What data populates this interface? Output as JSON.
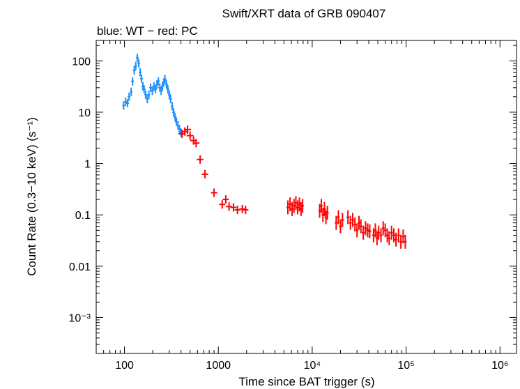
{
  "chart_data": {
    "type": "scatter",
    "title": "Swift/XRT data of GRB 090407",
    "subtitle": "blue: WT − red: PC",
    "xlabel": "Time since BAT trigger (s)",
    "ylabel": "Count Rate (0.3−10 keV) (s⁻¹)",
    "xscale": "log",
    "yscale": "log",
    "xlim": [
      50,
      1500000
    ],
    "ylim": [
      0.0002,
      250
    ],
    "x_ticks": [
      {
        "value": 100,
        "label": "100"
      },
      {
        "value": 1000,
        "label": "1000"
      },
      {
        "value": 10000,
        "label": "10⁴"
      },
      {
        "value": 100000,
        "label": "10⁵"
      },
      {
        "value": 1000000,
        "label": "10⁶"
      }
    ],
    "y_ticks": [
      {
        "value": 100,
        "label": "100"
      },
      {
        "value": 10,
        "label": "10"
      },
      {
        "value": 1,
        "label": "1"
      },
      {
        "value": 0.1,
        "label": "0.1"
      },
      {
        "value": 0.01,
        "label": "0.01"
      },
      {
        "value": 0.001,
        "label": "10⁻³"
      }
    ],
    "grid": false,
    "series": [
      {
        "name": "WT",
        "color": "#1e90ff",
        "points": [
          [
            98,
            13.5
          ],
          [
            103,
            16
          ],
          [
            108,
            15
          ],
          [
            112,
            20
          ],
          [
            118,
            25
          ],
          [
            122,
            40
          ],
          [
            127,
            65
          ],
          [
            132,
            80
          ],
          [
            137,
            115
          ],
          [
            142,
            90
          ],
          [
            147,
            60
          ],
          [
            152,
            45
          ],
          [
            157,
            32
          ],
          [
            162,
            28
          ],
          [
            168,
            22
          ],
          [
            175,
            18
          ],
          [
            182,
            22
          ],
          [
            190,
            30
          ],
          [
            198,
            26
          ],
          [
            206,
            32
          ],
          [
            214,
            28
          ],
          [
            222,
            35
          ],
          [
            230,
            40
          ],
          [
            238,
            30
          ],
          [
            246,
            26
          ],
          [
            254,
            32
          ],
          [
            262,
            38
          ],
          [
            270,
            44
          ],
          [
            280,
            35
          ],
          [
            290,
            28
          ],
          [
            300,
            22
          ],
          [
            310,
            18
          ],
          [
            322,
            13
          ],
          [
            334,
            10
          ],
          [
            346,
            8
          ],
          [
            358,
            6.5
          ],
          [
            372,
            5.5
          ],
          [
            386,
            4.7
          ],
          [
            400,
            4.0
          ]
        ]
      },
      {
        "name": "PC",
        "color": "#ff0000",
        "points": [
          [
            410,
            3.8
          ],
          [
            440,
            4.2
          ],
          [
            470,
            4.6
          ],
          [
            500,
            3.5
          ],
          [
            545,
            2.8
          ],
          [
            580,
            2.5
          ],
          [
            640,
            1.2
          ],
          [
            720,
            0.62
          ],
          [
            900,
            0.27
          ],
          [
            1100,
            0.16
          ],
          [
            1200,
            0.2
          ],
          [
            1300,
            0.145
          ],
          [
            1450,
            0.14
          ],
          [
            1600,
            0.125
          ],
          [
            1800,
            0.13
          ],
          [
            1950,
            0.125
          ],
          [
            5500,
            0.14
          ],
          [
            5800,
            0.16
          ],
          [
            6100,
            0.13
          ],
          [
            6400,
            0.15
          ],
          [
            6700,
            0.17
          ],
          [
            7000,
            0.14
          ],
          [
            7300,
            0.16
          ],
          [
            7600,
            0.13
          ],
          [
            7900,
            0.15
          ],
          [
            12000,
            0.12
          ],
          [
            12500,
            0.15
          ],
          [
            13000,
            0.1
          ],
          [
            13500,
            0.13
          ],
          [
            14000,
            0.09
          ],
          [
            14500,
            0.11
          ],
          [
            18000,
            0.07
          ],
          [
            19000,
            0.09
          ],
          [
            20000,
            0.06
          ],
          [
            21000,
            0.08
          ],
          [
            24000,
            0.09
          ],
          [
            25500,
            0.07
          ],
          [
            27000,
            0.08
          ],
          [
            28500,
            0.065
          ],
          [
            30000,
            0.05
          ],
          [
            31500,
            0.07
          ],
          [
            33000,
            0.06
          ],
          [
            35000,
            0.045
          ],
          [
            37000,
            0.055
          ],
          [
            39000,
            0.05
          ],
          [
            41000,
            0.048
          ],
          [
            45000,
            0.04
          ],
          [
            47000,
            0.05
          ],
          [
            49000,
            0.035
          ],
          [
            51000,
            0.045
          ],
          [
            54000,
            0.04
          ],
          [
            57000,
            0.055
          ],
          [
            60000,
            0.05
          ],
          [
            63000,
            0.04
          ],
          [
            66000,
            0.035
          ],
          [
            70000,
            0.045
          ],
          [
            74000,
            0.04
          ],
          [
            78000,
            0.033
          ],
          [
            83000,
            0.04
          ],
          [
            88000,
            0.03
          ],
          [
            93000,
            0.038
          ],
          [
            98000,
            0.03
          ]
        ]
      }
    ]
  }
}
